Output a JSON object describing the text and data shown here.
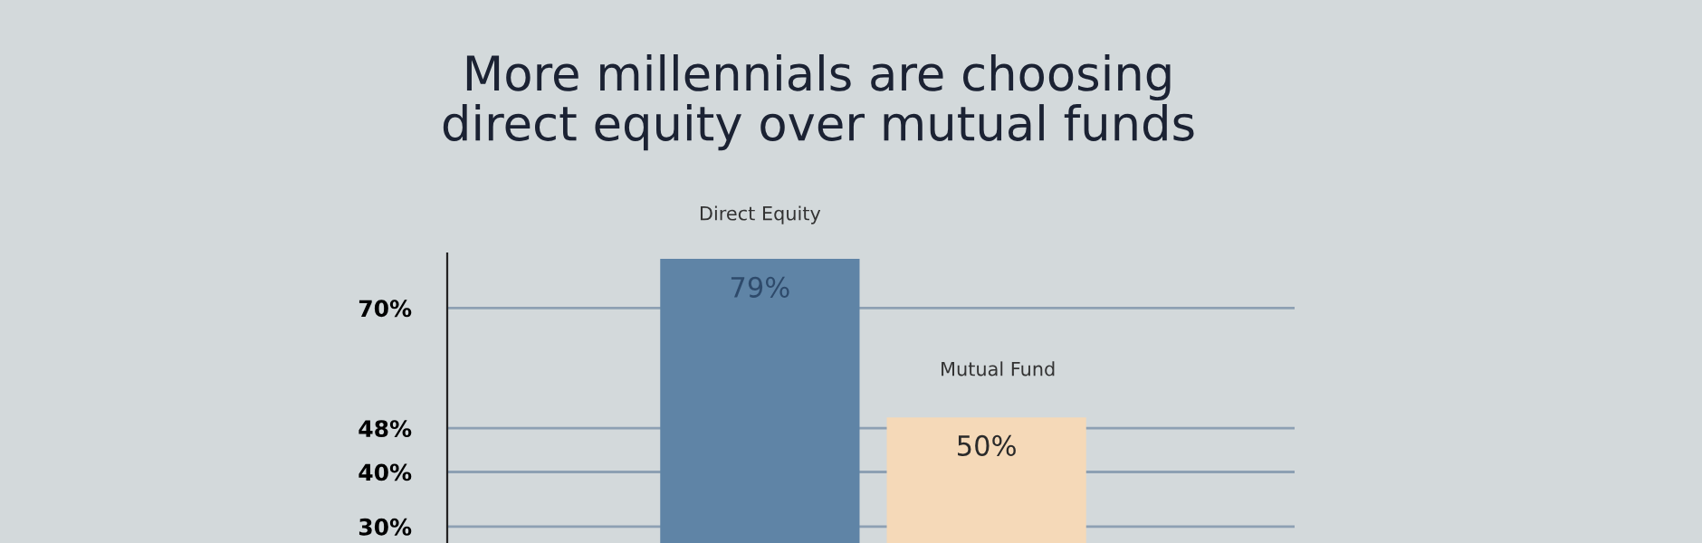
{
  "chart_data": {
    "type": "bar",
    "title": "More millennials are choosing\ndirect equity over mutual funds",
    "categories": [
      "Direct Equity",
      "Mutual Fund"
    ],
    "values": [
      79,
      50
    ],
    "colors": [
      "#5f84a6",
      "#f5d9b8"
    ],
    "value_labels": [
      "79%",
      "50%"
    ],
    "ylim": [
      27,
      80
    ],
    "yticks": [
      {
        "value": 30,
        "label": "30%"
      },
      {
        "value": 40,
        "label": "40%"
      },
      {
        "value": 48,
        "label": "48%"
      },
      {
        "value": 70,
        "label": "70%"
      }
    ],
    "grid": "y"
  }
}
